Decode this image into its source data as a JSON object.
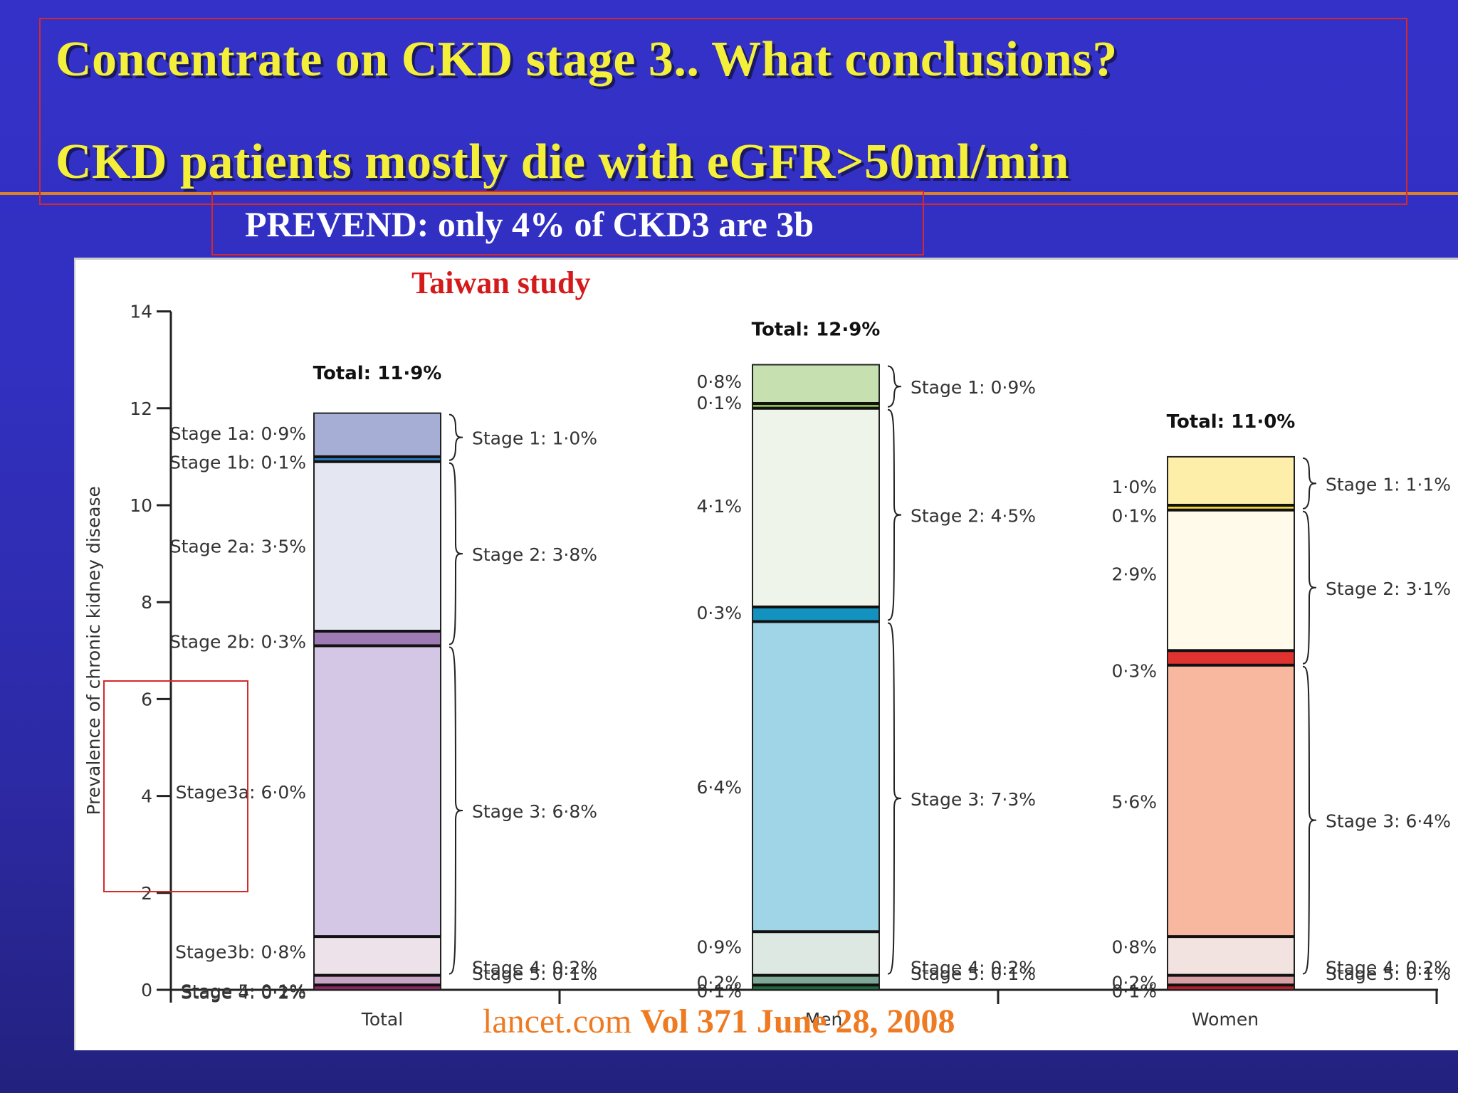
{
  "slide": {
    "title_line1": "Concentrate on CKD stage 3.. What conclusions?",
    "title_line2": "CKD patients mostly die with eGFR>50ml/min",
    "subtitle": "PREVEND: only 4% of CKD3 are 3b",
    "study_label": "Taiwan study",
    "source_plain": "lancet.com ",
    "source_bold": "Vol 371 June 28, 2008",
    "colors": {
      "title": "#f4f03a",
      "background": "#3431c9",
      "annotation_red": "#d42a2a",
      "source": "#ee7a22"
    }
  },
  "chart_data": {
    "type": "bar",
    "stacked": true,
    "ylabel": "Prevalence of chronic kidney disease",
    "ylim": [
      0,
      14
    ],
    "yticks": [
      "0",
      "2",
      "4",
      "6",
      "8",
      "10",
      "12",
      "14"
    ],
    "categories": [
      "Total",
      "Men",
      "Women"
    ],
    "totals": [
      "Total: 11·9%",
      "Total: 12·9%",
      "Total: 11·0%"
    ],
    "bars": [
      {
        "category": "Total",
        "segments": [
          {
            "value": 0.1,
            "color": "#8e2464",
            "label": "Stage 5: 0·1%"
          },
          {
            "value": 0.2,
            "color": "#c7a3c4",
            "label": "Stage 4: 0·2%"
          },
          {
            "value": 0.8,
            "color": "#ede2ea",
            "label": "Stage3b: 0·8%"
          },
          {
            "value": 6.0,
            "color": "#d4c6e5",
            "label": "Stage3a: 6·0%"
          },
          {
            "value": 0.3,
            "color": "#9e7bb3",
            "label": "Stage 2b: 0·3%"
          },
          {
            "value": 3.5,
            "color": "#e4e6f2",
            "label": "Stage 2a: 3·5%"
          },
          {
            "value": 0.1,
            "color": "#2f7cc0",
            "label": "Stage 1b: 0·1%"
          },
          {
            "value": 0.9,
            "color": "#a6aed6",
            "label": "Stage 1a: 0·9%"
          }
        ],
        "stage_labels": [
          "Stage 5: 0·1%",
          "Stage 4: 0·2%",
          "Stage 3: 6·8%",
          "Stage 2: 3·8%",
          "Stage 1: 1·0%"
        ]
      },
      {
        "category": "Men",
        "segments": [
          {
            "value": 0.1,
            "color": "#1c6b3e",
            "label": "0·1%"
          },
          {
            "value": 0.2,
            "color": "#7fa897",
            "label": "0·2%"
          },
          {
            "value": 0.9,
            "color": "#dde8e2",
            "label": "0·9%"
          },
          {
            "value": 6.4,
            "color": "#9fd5e6",
            "label": "6·4%"
          },
          {
            "value": 0.3,
            "color": "#1391bf",
            "label": "0·3%"
          },
          {
            "value": 4.1,
            "color": "#eef4ea",
            "label": "4·1%"
          },
          {
            "value": 0.1,
            "color": "#8fbe4c",
            "label": "0·1%"
          },
          {
            "value": 0.8,
            "color": "#c7e0b0",
            "label": "0·8%"
          }
        ],
        "stage_labels": [
          "Stage 5: 0·1%",
          "Stage 4: 0·2%",
          "Stage 3: 7·3%",
          "Stage 2: 4·5%",
          "Stage 1: 0·9%"
        ]
      },
      {
        "category": "Women",
        "segments": [
          {
            "value": 0.1,
            "color": "#b81c2c",
            "label": "0·1%"
          },
          {
            "value": 0.2,
            "color": "#d9a0a4",
            "label": "0·2%"
          },
          {
            "value": 0.8,
            "color": "#f2e2e0",
            "label": "0·8%"
          },
          {
            "value": 5.6,
            "color": "#f8b8a0",
            "label": "5·6%"
          },
          {
            "value": 0.3,
            "color": "#e03330",
            "label": "0·3%"
          },
          {
            "value": 2.9,
            "color": "#fffaea",
            "label": "2·9%"
          },
          {
            "value": 0.1,
            "color": "#f1d836",
            "label": "0·1%"
          },
          {
            "value": 1.0,
            "color": "#fdeeaa",
            "label": "1·0%"
          }
        ],
        "stage_labels": [
          "Stage 5: 0·1%",
          "Stage 4: 0·2%",
          "Stage 3: 6·4%",
          "Stage 2: 3·1%",
          "Stage 1: 1·1%"
        ]
      }
    ]
  }
}
